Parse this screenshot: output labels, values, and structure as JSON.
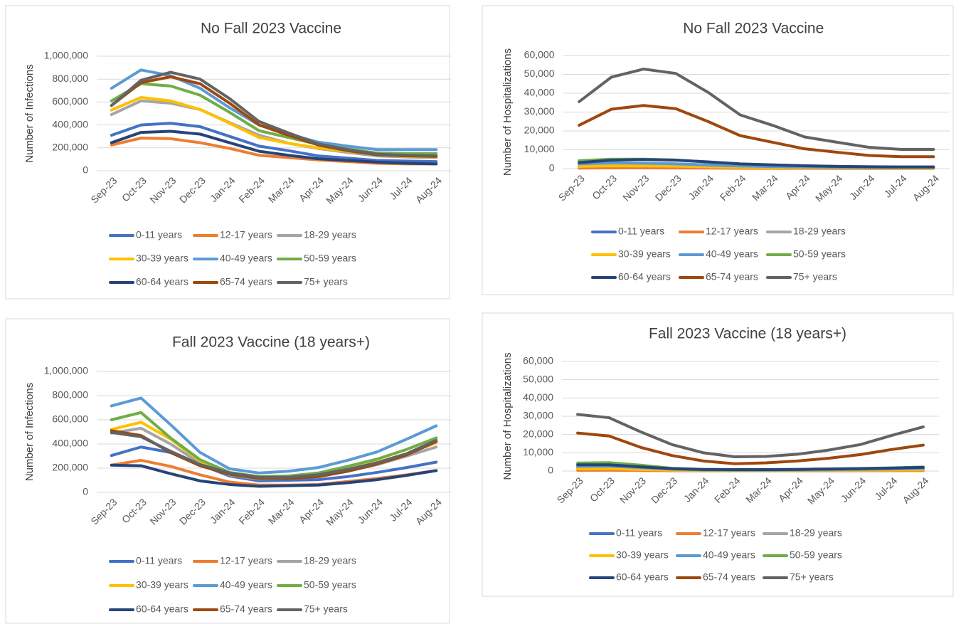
{
  "chart_data": [
    {
      "type": "line",
      "title": "No Fall 2023 Vaccine",
      "y_label": "Number of Infections",
      "categories": [
        "Sep-23",
        "Oct-23",
        "Nov-23",
        "Dec-23",
        "Jan-24",
        "Feb-24",
        "Mar-24",
        "Apr-24",
        "May-24",
        "Jun-24",
        "Jul-24",
        "Aug-24"
      ],
      "ylim": [
        0,
        1000000
      ],
      "yticks": [
        0,
        {
          "value": 200000,
          "label": "200,000"
        },
        {
          "value": 400000,
          "label": "400,000"
        },
        {
          "value": 600000,
          "label": "600,000"
        },
        {
          "value": 800000,
          "label": "800,000"
        },
        {
          "value": 1000000,
          "label": "1,000,000"
        }
      ],
      "grid": true,
      "legend": "bottom",
      "series": [
        {
          "name": "0-11 years",
          "color": "#4472c4",
          "values": [
            310000,
            400000,
            415000,
            385000,
            300000,
            215000,
            175000,
            130000,
            110000,
            90000,
            85000,
            80000
          ]
        },
        {
          "name": "12-17 years",
          "color": "#ed7d31",
          "values": [
            225000,
            285000,
            280000,
            245000,
            195000,
            135000,
            115000,
            95000,
            80000,
            65000,
            60000,
            60000
          ]
        },
        {
          "name": "18-29 years",
          "color": "#a5a5a5",
          "values": [
            490000,
            610000,
            590000,
            535000,
            420000,
            310000,
            240000,
            195000,
            160000,
            130000,
            120000,
            115000
          ]
        },
        {
          "name": "30-39 years",
          "color": "#ffc000",
          "values": [
            530000,
            640000,
            610000,
            535000,
            415000,
            290000,
            240000,
            200000,
            170000,
            140000,
            125000,
            120000
          ]
        },
        {
          "name": "40-49 years",
          "color": "#5b9bd5",
          "values": [
            720000,
            880000,
            830000,
            720000,
            550000,
            400000,
            320000,
            250000,
            215000,
            185000,
            185000,
            185000
          ]
        },
        {
          "name": "50-59 years",
          "color": "#70ad47",
          "values": [
            610000,
            760000,
            740000,
            660000,
            510000,
            350000,
            290000,
            230000,
            190000,
            155000,
            150000,
            150000
          ]
        },
        {
          "name": "60-64 years",
          "color": "#264478",
          "values": [
            245000,
            335000,
            345000,
            320000,
            245000,
            170000,
            135000,
            105000,
            90000,
            75000,
            65000,
            60000
          ]
        },
        {
          "name": "65-74 years",
          "color": "#9e480e",
          "values": [
            570000,
            770000,
            820000,
            760000,
            590000,
            400000,
            310000,
            225000,
            175000,
            140000,
            130000,
            125000
          ]
        },
        {
          "name": "75+ years",
          "color": "#636363",
          "values": [
            570000,
            790000,
            860000,
            800000,
            630000,
            430000,
            330000,
            235000,
            185000,
            145000,
            135000,
            130000
          ]
        }
      ]
    },
    {
      "type": "line",
      "title": "No Fall 2023 Vaccine",
      "y_label": "Number of Hospitalizations",
      "categories": [
        "Sep-23",
        "Oct-23",
        "Nov-23",
        "Dec-23",
        "Jan-24",
        "Feb-24",
        "Mar-24",
        "Apr-24",
        "May-24",
        "Jun-24",
        "Jul-24",
        "Aug-24"
      ],
      "ylim": [
        0,
        60000
      ],
      "yticks": [
        0,
        {
          "value": 10000,
          "label": "10,000"
        },
        {
          "value": 20000,
          "label": "20,000"
        },
        {
          "value": 30000,
          "label": "30,000"
        },
        {
          "value": 40000,
          "label": "40,000"
        },
        {
          "value": 50000,
          "label": "50,000"
        },
        {
          "value": 60000,
          "label": "60,000"
        }
      ],
      "grid": true,
      "legend": "bottom",
      "series": [
        {
          "name": "0-11 years",
          "color": "#4472c4",
          "values": [
            2000,
            2600,
            2700,
            2500,
            2000,
            1400,
            1100,
            900,
            700,
            600,
            550,
            550
          ]
        },
        {
          "name": "12-17 years",
          "color": "#ed7d31",
          "values": [
            300,
            400,
            400,
            350,
            280,
            200,
            160,
            130,
            110,
            90,
            80,
            80
          ]
        },
        {
          "name": "18-29 years",
          "color": "#a5a5a5",
          "values": [
            1500,
            1900,
            1800,
            1600,
            1200,
            900,
            700,
            550,
            450,
            400,
            380,
            380
          ]
        },
        {
          "name": "30-39 years",
          "color": "#ffc000",
          "values": [
            1200,
            1500,
            1400,
            1300,
            1000,
            700,
            550,
            450,
            380,
            320,
            300,
            300
          ]
        },
        {
          "name": "40-49 years",
          "color": "#5b9bd5",
          "values": [
            2500,
            3000,
            2900,
            2500,
            1900,
            1400,
            1100,
            900,
            700,
            600,
            600,
            600
          ]
        },
        {
          "name": "50-59 years",
          "color": "#70ad47",
          "values": [
            4200,
            5000,
            5000,
            4600,
            3500,
            2500,
            2000,
            1500,
            1200,
            1000,
            900,
            900
          ]
        },
        {
          "name": "60-64 years",
          "color": "#264478",
          "values": [
            3200,
            4500,
            4800,
            4500,
            3600,
            2500,
            2000,
            1500,
            1200,
            1000,
            900,
            900
          ]
        },
        {
          "name": "65-74 years",
          "color": "#9e480e",
          "values": [
            23000,
            31500,
            33500,
            31800,
            25000,
            17500,
            14000,
            10500,
            8700,
            7000,
            6300,
            6300
          ]
        },
        {
          "name": "75+ years",
          "color": "#636363",
          "values": [
            35500,
            48500,
            52800,
            50500,
            40500,
            28500,
            23000,
            16800,
            14000,
            11300,
            10200,
            10200
          ]
        }
      ]
    },
    {
      "type": "line",
      "title": "Fall 2023 Vaccine (18 years+)",
      "y_label": "Number of Infections",
      "categories": [
        "Sep-23",
        "Oct-23",
        "Nov-23",
        "Dec-23",
        "Jan-24",
        "Feb-24",
        "Mar-24",
        "Apr-24",
        "May-24",
        "Jun-24",
        "Jul-24",
        "Aug-24"
      ],
      "ylim": [
        0,
        1000000
      ],
      "yticks": [
        0,
        {
          "value": 200000,
          "label": "200,000"
        },
        {
          "value": 400000,
          "label": "400,000"
        },
        {
          "value": 600000,
          "label": "600,000"
        },
        {
          "value": 800000,
          "label": "800,000"
        },
        {
          "value": 1000000,
          "label": "1,000,000"
        }
      ],
      "grid": true,
      "legend": "bottom",
      "series": [
        {
          "name": "0-11 years",
          "color": "#4472c4",
          "values": [
            305000,
            375000,
            330000,
            230000,
            135000,
            95000,
            100000,
            105000,
            130000,
            165000,
            205000,
            250000
          ]
        },
        {
          "name": "12-17 years",
          "color": "#ed7d31",
          "values": [
            225000,
            265000,
            215000,
            145000,
            85000,
            60000,
            60000,
            65000,
            90000,
            115000,
            145000,
            180000
          ]
        },
        {
          "name": "18-29 years",
          "color": "#a5a5a5",
          "values": [
            490000,
            530000,
            400000,
            240000,
            145000,
            110000,
            115000,
            130000,
            175000,
            230000,
            300000,
            375000
          ]
        },
        {
          "name": "30-39 years",
          "color": "#ffc000",
          "values": [
            520000,
            580000,
            440000,
            260000,
            160000,
            125000,
            125000,
            140000,
            190000,
            250000,
            320000,
            410000
          ]
        },
        {
          "name": "40-49 years",
          "color": "#5b9bd5",
          "values": [
            715000,
            780000,
            560000,
            330000,
            195000,
            160000,
            175000,
            205000,
            265000,
            335000,
            440000,
            550000
          ]
        },
        {
          "name": "50-59 years",
          "color": "#70ad47",
          "values": [
            600000,
            660000,
            450000,
            270000,
            165000,
            130000,
            135000,
            160000,
            215000,
            275000,
            355000,
            450000
          ]
        },
        {
          "name": "60-64 years",
          "color": "#264478",
          "values": [
            225000,
            220000,
            155000,
            95000,
            65000,
            50000,
            55000,
            60000,
            80000,
            105000,
            140000,
            180000
          ]
        },
        {
          "name": "65-74 years",
          "color": "#9e480e",
          "values": [
            510000,
            470000,
            330000,
            220000,
            150000,
            115000,
            115000,
            130000,
            175000,
            235000,
            310000,
            420000
          ]
        },
        {
          "name": "75+ years",
          "color": "#636363",
          "values": [
            495000,
            460000,
            340000,
            230000,
            160000,
            125000,
            125000,
            145000,
            190000,
            245000,
            320000,
            430000
          ]
        }
      ]
    },
    {
      "type": "line",
      "title": "Fall 2023 Vaccine (18 years+)",
      "y_label": "Number of Hospitalizations",
      "categories": [
        "Sep-23",
        "Oct-23",
        "Nov-23",
        "Dec-23",
        "Jan-24",
        "Feb-24",
        "Mar-24",
        "Apr-24",
        "May-24",
        "Jun-24",
        "Jul-24",
        "Aug-24"
      ],
      "ylim": [
        0,
        60000
      ],
      "yticks": [
        0,
        {
          "value": 10000,
          "label": "10,000"
        },
        {
          "value": 20000,
          "label": "20,000"
        },
        {
          "value": 30000,
          "label": "30,000"
        },
        {
          "value": 40000,
          "label": "40,000"
        },
        {
          "value": 50000,
          "label": "50,000"
        },
        {
          "value": 60000,
          "label": "60,000"
        }
      ],
      "grid": true,
      "legend": "bottom",
      "series": [
        {
          "name": "0-11 years",
          "color": "#4472c4",
          "values": [
            2300,
            2500,
            1700,
            900,
            500,
            400,
            400,
            500,
            600,
            700,
            900,
            1100
          ]
        },
        {
          "name": "12-17 years",
          "color": "#ed7d31",
          "values": [
            400,
            450,
            300,
            170,
            100,
            80,
            80,
            90,
            110,
            140,
            180,
            220
          ]
        },
        {
          "name": "18-29 years",
          "color": "#a5a5a5",
          "values": [
            1600,
            1700,
            1200,
            600,
            400,
            300,
            300,
            350,
            450,
            550,
            700,
            900
          ]
        },
        {
          "name": "30-39 years",
          "color": "#ffc000",
          "values": [
            1200,
            1300,
            900,
            500,
            300,
            250,
            250,
            300,
            350,
            450,
            550,
            700
          ]
        },
        {
          "name": "40-49 years",
          "color": "#5b9bd5",
          "values": [
            2500,
            2700,
            1900,
            1000,
            600,
            500,
            500,
            600,
            700,
            900,
            1100,
            1400
          ]
        },
        {
          "name": "50-59 years",
          "color": "#70ad47",
          "values": [
            4400,
            4600,
            3200,
            1500,
            900,
            700,
            800,
            900,
            1100,
            1400,
            1700,
            2200
          ]
        },
        {
          "name": "60-64 years",
          "color": "#264478",
          "values": [
            3400,
            3400,
            2300,
            1300,
            900,
            800,
            800,
            900,
            1100,
            1300,
            1600,
            2000
          ]
        },
        {
          "name": "65-74 years",
          "color": "#9e480e",
          "values": [
            20800,
            19200,
            13000,
            8500,
            5500,
            4000,
            4500,
            5500,
            7000,
            9000,
            11800,
            14200
          ]
        },
        {
          "name": "75+ years",
          "color": "#636363",
          "values": [
            31000,
            29200,
            21500,
            14500,
            10000,
            7800,
            8000,
            9200,
            11500,
            14500,
            19500,
            24200
          ]
        }
      ]
    }
  ]
}
